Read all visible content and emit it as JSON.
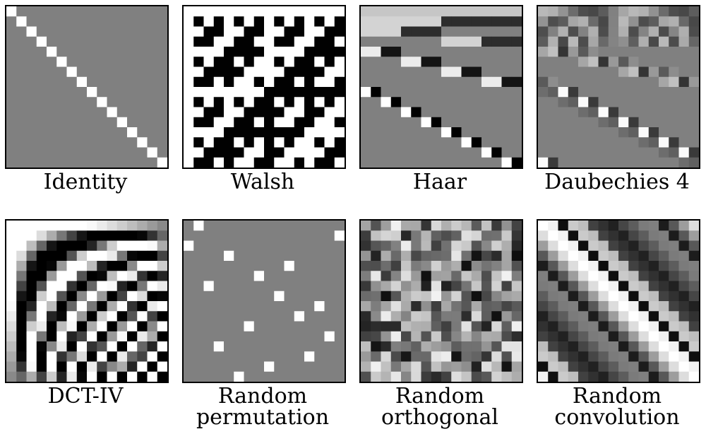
{
  "panels": [
    {
      "id": "identity",
      "caption": [
        "Identity"
      ]
    },
    {
      "id": "walsh",
      "caption": [
        "Walsh"
      ]
    },
    {
      "id": "haar",
      "caption": [
        "Haar"
      ]
    },
    {
      "id": "daubechies",
      "caption": [
        "Daubechies 4"
      ]
    },
    {
      "id": "dct",
      "caption": [
        "DCT-IV"
      ]
    },
    {
      "id": "perm",
      "caption": [
        "Random",
        "permutation"
      ]
    },
    {
      "id": "orth",
      "caption": [
        "Random",
        "orthogonal"
      ]
    },
    {
      "id": "conv",
      "caption": [
        "Random",
        "convolution"
      ]
    }
  ],
  "colors": {
    "background": "#ffffff",
    "zero": "#808080",
    "frame": "#000000"
  },
  "grid_size": 16
}
